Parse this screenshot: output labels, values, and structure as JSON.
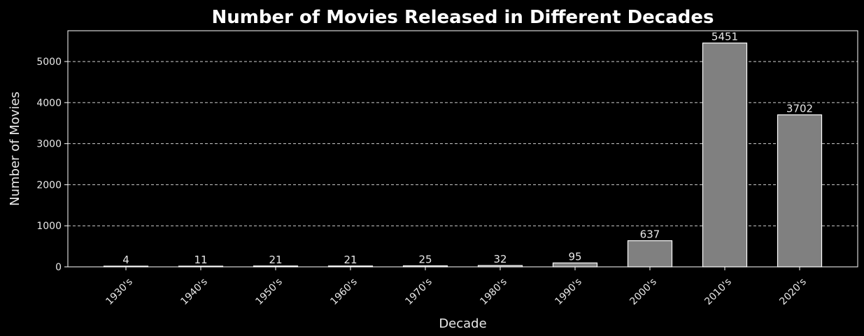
{
  "chart_data": {
    "type": "bar",
    "title": "Number of Movies Released in Different Decades",
    "xlabel": "Decade",
    "ylabel": "Number of Movies",
    "categories": [
      "1930's",
      "1940's",
      "1950's",
      "1960's",
      "1970's",
      "1980's",
      "1990's",
      "2000's",
      "2010's",
      "2020's"
    ],
    "values": [
      4,
      11,
      21,
      21,
      25,
      32,
      95,
      637,
      5451,
      3702
    ],
    "ylim": [
      0,
      5750
    ],
    "yticks": [
      0,
      1000,
      2000,
      3000,
      4000,
      5000
    ],
    "grid": "y-dashed",
    "legend": "none",
    "colors": {
      "background": "#000000",
      "bar_fill": "#808080",
      "bar_edge": "#ffffff",
      "grid": "#cfcfcf",
      "text": "#ffffff"
    }
  }
}
